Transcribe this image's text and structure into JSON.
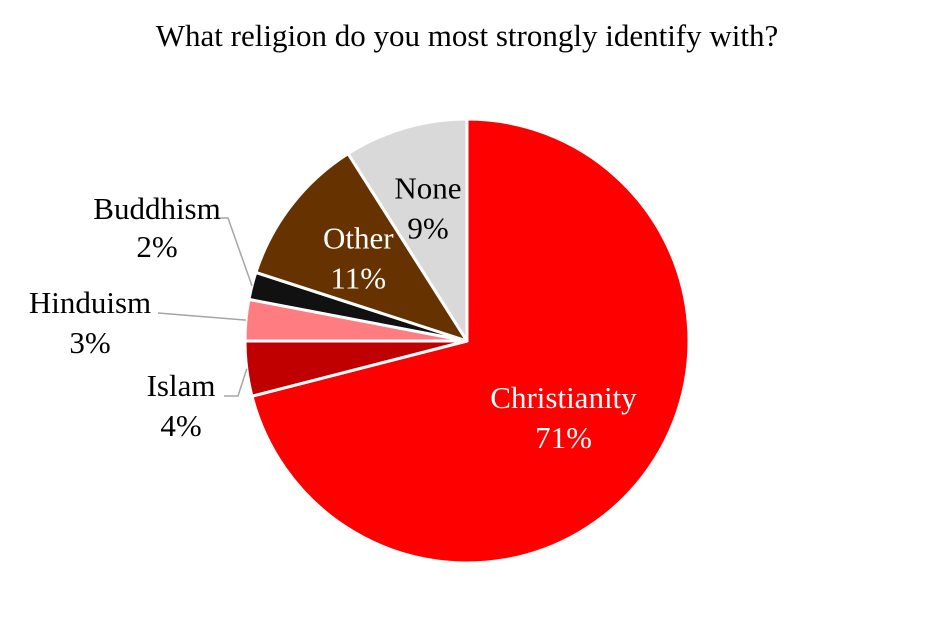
{
  "chart_data": {
    "type": "pie",
    "title": "What religion do you most strongly identify with?",
    "slices": [
      {
        "label": "Christianity",
        "value": 71,
        "value_label": "71%",
        "color": "#ff0000",
        "label_color": "#ffffff",
        "label_placement": "inside"
      },
      {
        "label": "Islam",
        "value": 4,
        "value_label": "4%",
        "color": "#c00000",
        "label_color": "#000000",
        "label_placement": "outside"
      },
      {
        "label": "Hinduism",
        "value": 3,
        "value_label": "3%",
        "color": "#ff7c80",
        "label_color": "#000000",
        "label_placement": "outside"
      },
      {
        "label": "Buddhism",
        "value": 2,
        "value_label": "2%",
        "color": "#111111",
        "label_color": "#000000",
        "label_placement": "outside"
      },
      {
        "label": "Other",
        "value": 11,
        "value_label": "11%",
        "color": "#663300",
        "label_color": "#ffffff",
        "label_placement": "inside"
      },
      {
        "label": "None",
        "value": 9,
        "value_label": "9%",
        "color": "#d9d9d9",
        "label_color": "#000000",
        "label_placement": "inside"
      }
    ],
    "start_angle": "12 o'clock, clockwise",
    "legend": "none"
  }
}
